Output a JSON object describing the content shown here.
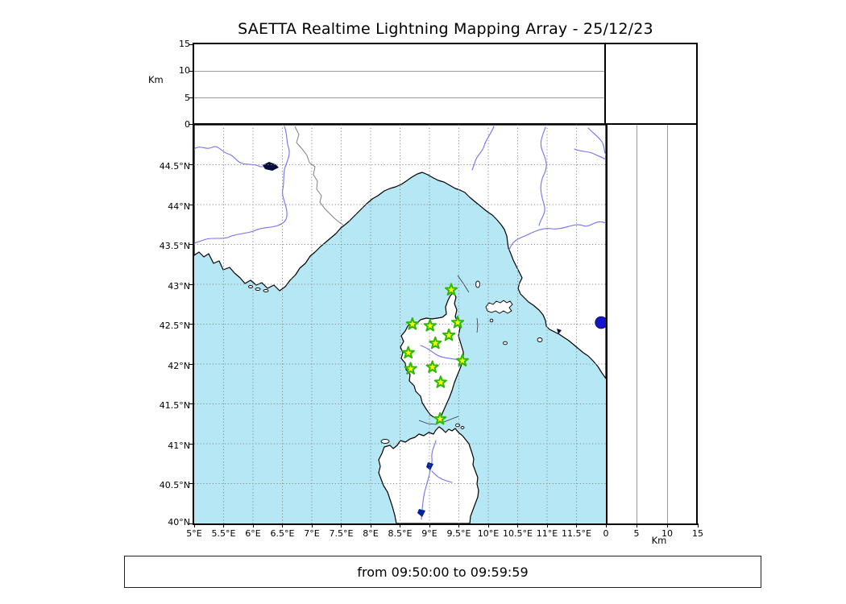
{
  "title": "SAETTA Realtime Lightning Mapping Array - 25/12/23",
  "footer": {
    "label": "from 09:50:00 to 09:59:59"
  },
  "axes": {
    "top": {
      "unit": "Km",
      "ticks": [
        "15",
        "10",
        "5",
        "0"
      ]
    },
    "right": {
      "unit": "Km",
      "ticks": [
        "0",
        "5",
        "10",
        "15"
      ]
    },
    "map": {
      "lat_tick_labels": [
        "44.5°N",
        "44°N",
        "43.5°N",
        "43°N",
        "42.5°N",
        "42°N",
        "41.5°N",
        "41°N",
        "40.5°N",
        "40°N"
      ],
      "lon_tick_labels": [
        "5°E",
        "5.5°E",
        "6°E",
        "6.5°E",
        "7°E",
        "7.5°E",
        "8°E",
        "8.5°E",
        "9°E",
        "9.5°E",
        "10°E",
        "10.5°E",
        "11°E",
        "11.5°E"
      ]
    }
  },
  "chart_data": {
    "type": "scatter",
    "title": "SAETTA Realtime Lightning Mapping Array - 25/12/23",
    "time_window": "from 09:50:00 to 09:59:59",
    "map_panel": {
      "xlim_lon": [
        5,
        12
      ],
      "ylim_lat": [
        40,
        45
      ],
      "grid": true,
      "grid_step_deg": 0.5,
      "stations_lon_lat": [
        [
          9.37,
          42.93
        ],
        [
          8.71,
          42.5
        ],
        [
          9.01,
          42.48
        ],
        [
          9.48,
          42.52
        ],
        [
          9.33,
          42.36
        ],
        [
          9.1,
          42.26
        ],
        [
          8.64,
          42.14
        ],
        [
          9.56,
          42.04
        ],
        [
          9.05,
          41.96
        ],
        [
          8.68,
          41.94
        ],
        [
          9.19,
          41.77
        ],
        [
          9.18,
          41.31
        ]
      ],
      "event_point_lon_lat": [
        11.92,
        42.52
      ]
    },
    "altitude_top_panel": {
      "ylabel": "Km",
      "ylim": [
        0,
        15
      ],
      "yticks": [
        0,
        5,
        10,
        15
      ],
      "points": []
    },
    "altitude_right_panel": {
      "xlabel": "Km",
      "xlim": [
        0,
        15
      ],
      "xticks": [
        0,
        5,
        10,
        15
      ],
      "points": []
    }
  },
  "colors": {
    "sea": "#b5e8f4",
    "land": "#ffffff",
    "coastline": "#000000",
    "river": "#7272f0",
    "grid": "#8a8a8a",
    "country_border": "#808080",
    "station_fill": "#ffff00",
    "station_stroke": "#2eb800",
    "event_dot": "#1414cc",
    "lake": "#0c0c3c",
    "reservoir": "#002299"
  }
}
